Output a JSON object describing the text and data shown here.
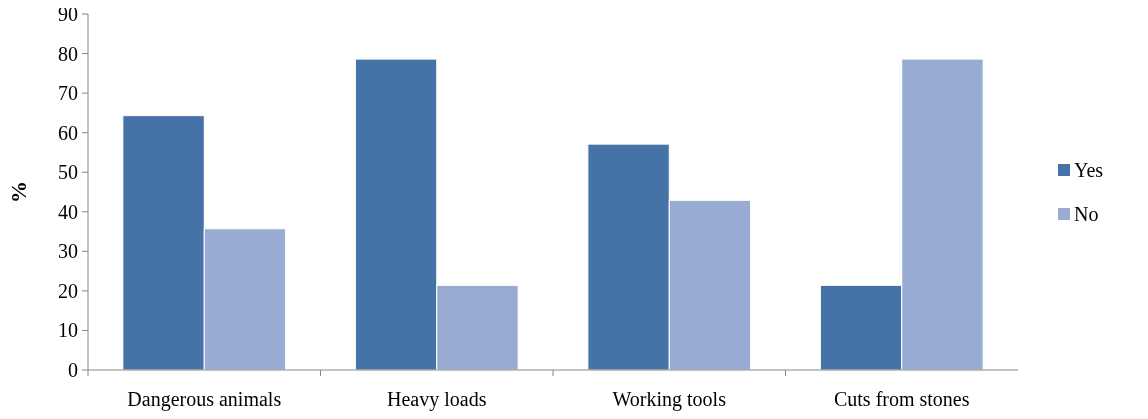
{
  "chart_data": {
    "type": "bar",
    "ylabel": "%",
    "categories": [
      "Dangerous animals",
      "Heavy loads",
      "Working tools",
      "Cuts from stones"
    ],
    "series": [
      {
        "name": "Yes",
        "color": "#4573a7",
        "values": [
          64.3,
          78.6,
          57.1,
          21.4
        ]
      },
      {
        "name": "No",
        "color": "#97abd3",
        "values": [
          35.7,
          21.4,
          42.9,
          78.6
        ]
      }
    ],
    "ylim": [
      0,
      90
    ],
    "yticks": [
      0,
      10,
      20,
      30,
      40,
      50,
      60,
      70,
      80,
      90
    ],
    "grid": false,
    "legend": "right"
  }
}
